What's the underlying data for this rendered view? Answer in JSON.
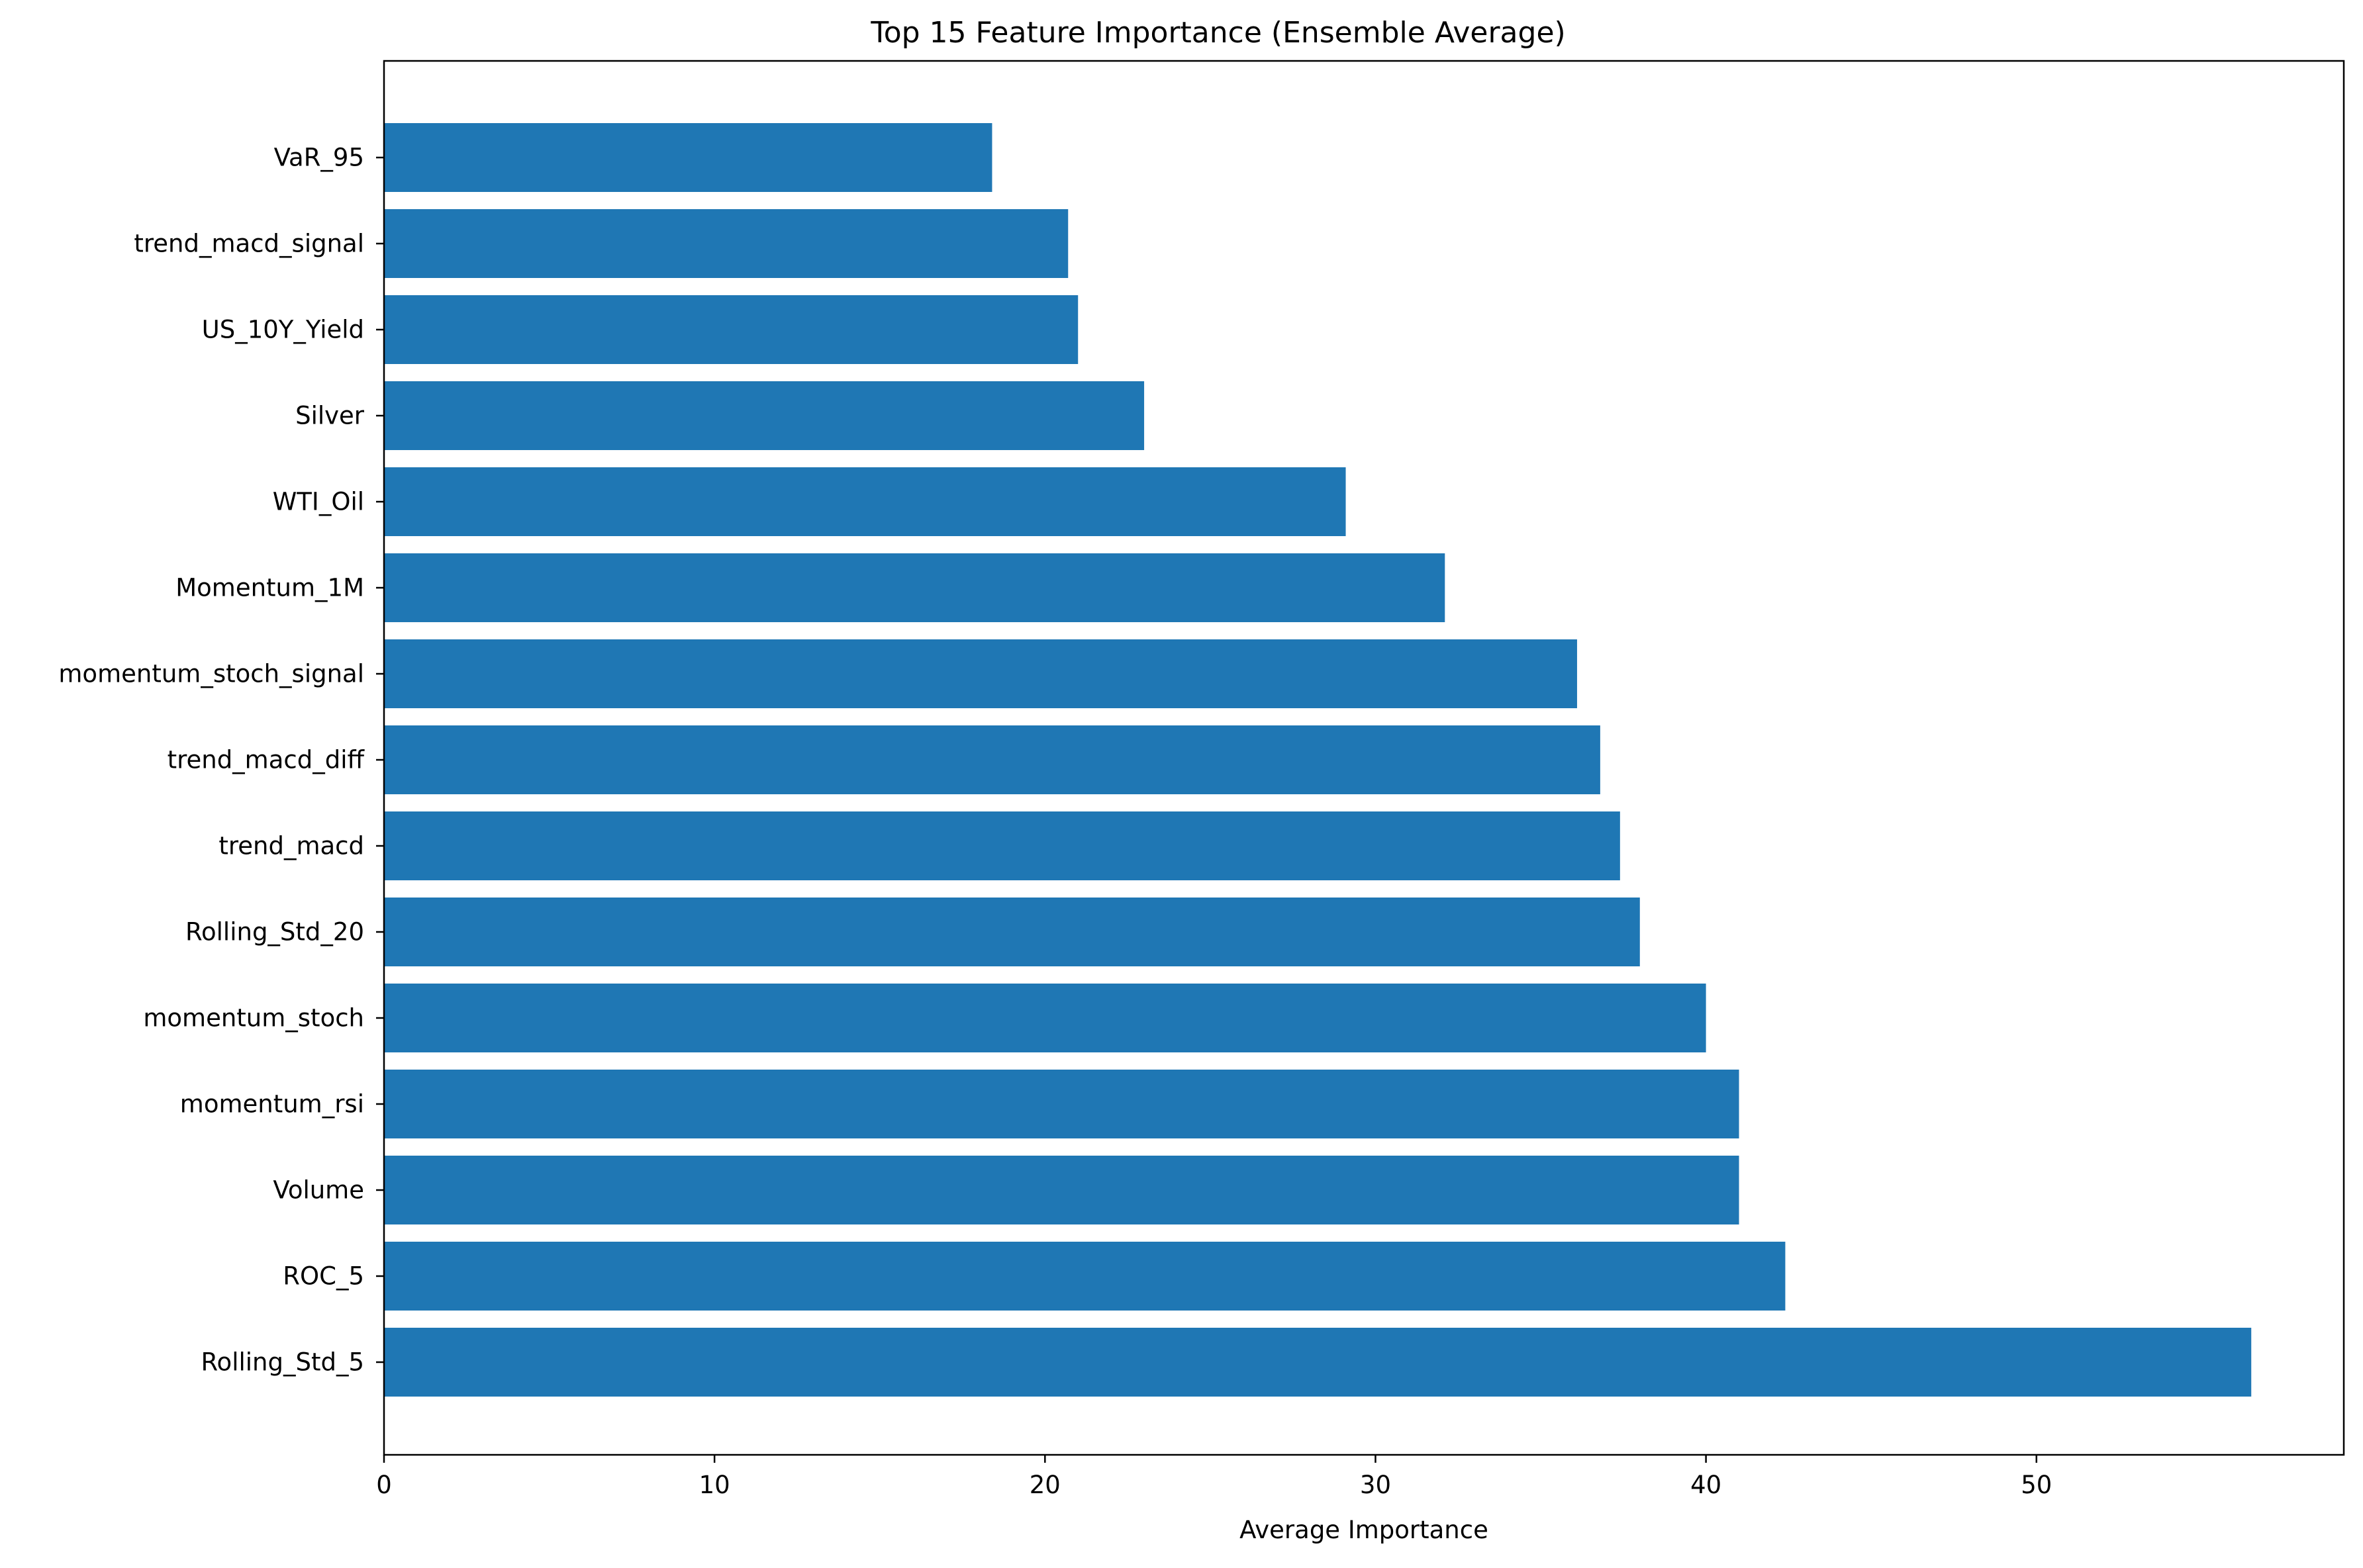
{
  "chart_data": {
    "type": "bar",
    "orientation": "horizontal",
    "title": "Top 15 Feature Importance (Ensemble Average)",
    "xlabel": "Average Importance",
    "ylabel": "",
    "xlim": [
      0,
      59.3
    ],
    "xticks": [
      0,
      10,
      20,
      30,
      40,
      50
    ],
    "grid": false,
    "categories": [
      "Rolling_Std_5",
      "ROC_5",
      "Volume",
      "momentum_rsi",
      "momentum_stoch",
      "Rolling_Std_20",
      "trend_macd",
      "trend_macd_diff",
      "momentum_stoch_signal",
      "Momentum_1M",
      "WTI_Oil",
      "Silver",
      "US_10Y_Yield",
      "trend_macd_signal",
      "VaR_95"
    ],
    "values": [
      56.5,
      42.4,
      41.0,
      41.0,
      40.0,
      38.0,
      37.4,
      36.8,
      36.1,
      32.1,
      29.1,
      23.0,
      21.0,
      20.7,
      18.4
    ],
    "bar_color": "#1f77b4"
  }
}
